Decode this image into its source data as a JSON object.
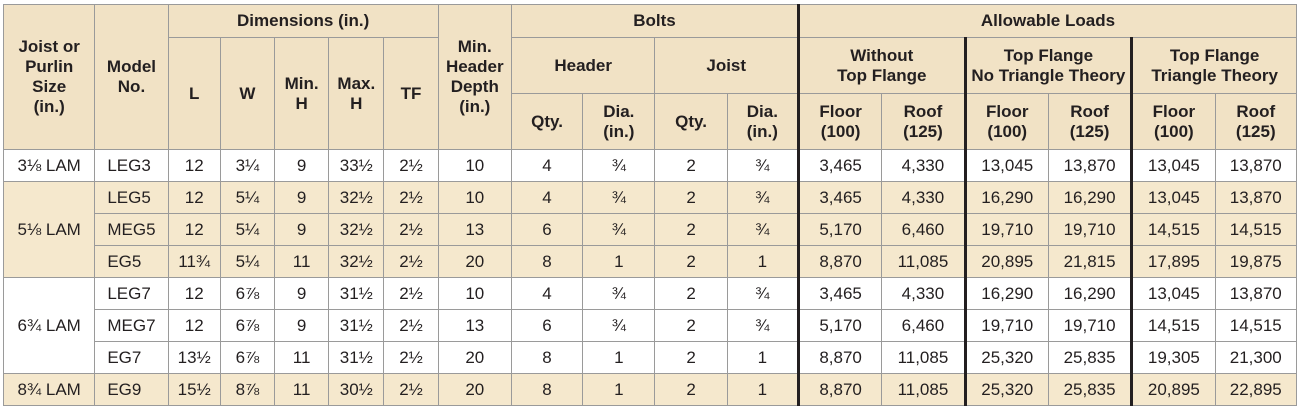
{
  "header": {
    "joist_size": [
      "Joist or",
      "Purlin",
      "Size",
      "(in.)"
    ],
    "model_no": [
      "Model",
      "No."
    ],
    "dimensions": "Dimensions (in.)",
    "dim_L": "L",
    "dim_W": "W",
    "dim_minH": [
      "Min.",
      "H"
    ],
    "dim_maxH": [
      "Max.",
      "H"
    ],
    "dim_TF": "TF",
    "min_header_depth": [
      "Min.",
      "Header",
      "Depth",
      "(in.)"
    ],
    "bolts": "Bolts",
    "bolts_header": "Header",
    "bolts_joist": "Joist",
    "qty": "Qty.",
    "dia": [
      "Dia.",
      "(in.)"
    ],
    "allowable_loads": "Allowable Loads",
    "without_tf": [
      "Without",
      "Top Flange"
    ],
    "tf_no_triangle": [
      "Top Flange",
      "No Triangle Theory"
    ],
    "tf_triangle": [
      "Top Flange",
      "Triangle Theory"
    ],
    "floor": [
      "Floor",
      "(100)"
    ],
    "roof": [
      "Roof",
      "(125)"
    ]
  },
  "groups": [
    {
      "size": "3⅛ LAM",
      "shade": "white",
      "rows": [
        [
          "LEG3",
          "12",
          "3¼",
          "9",
          "33½",
          "2½",
          "10",
          "4",
          "¾",
          "2",
          "¾",
          "3,465",
          "4,330",
          "13,045",
          "13,870",
          "13,045",
          "13,870"
        ]
      ]
    },
    {
      "size": "5⅛ LAM",
      "shade": "tan",
      "rows": [
        [
          "LEG5",
          "12",
          "5¼",
          "9",
          "32½",
          "2½",
          "10",
          "4",
          "¾",
          "2",
          "¾",
          "3,465",
          "4,330",
          "16,290",
          "16,290",
          "13,045",
          "13,870"
        ],
        [
          "MEG5",
          "12",
          "5¼",
          "9",
          "32½",
          "2½",
          "13",
          "6",
          "¾",
          "2",
          "¾",
          "5,170",
          "6,460",
          "19,710",
          "19,710",
          "14,515",
          "14,515"
        ],
        [
          "EG5",
          "11¾",
          "5¼",
          "11",
          "32½",
          "2½",
          "20",
          "8",
          "1",
          "2",
          "1",
          "8,870",
          "11,085",
          "20,895",
          "21,815",
          "17,895",
          "19,875"
        ]
      ]
    },
    {
      "size": "6¾ LAM",
      "shade": "white",
      "rows": [
        [
          "LEG7",
          "12",
          "6⅞",
          "9",
          "31½",
          "2½",
          "10",
          "4",
          "¾",
          "2",
          "¾",
          "3,465",
          "4,330",
          "16,290",
          "16,290",
          "13,045",
          "13,870"
        ],
        [
          "MEG7",
          "12",
          "6⅞",
          "9",
          "31½",
          "2½",
          "13",
          "6",
          "¾",
          "2",
          "¾",
          "5,170",
          "6,460",
          "19,710",
          "19,710",
          "14,515",
          "14,515"
        ],
        [
          "EG7",
          "13½",
          "6⅞",
          "11",
          "31½",
          "2½",
          "20",
          "8",
          "1",
          "2",
          "1",
          "8,870",
          "11,085",
          "25,320",
          "25,835",
          "19,305",
          "21,300"
        ]
      ]
    },
    {
      "size": "8¾ LAM",
      "shade": "tan",
      "rows": [
        [
          "EG9",
          "15½",
          "8⅞",
          "11",
          "30½",
          "2½",
          "20",
          "8",
          "1",
          "2",
          "1",
          "8,870",
          "11,085",
          "25,320",
          "25,835",
          "20,895",
          "22,895"
        ]
      ]
    }
  ]
}
